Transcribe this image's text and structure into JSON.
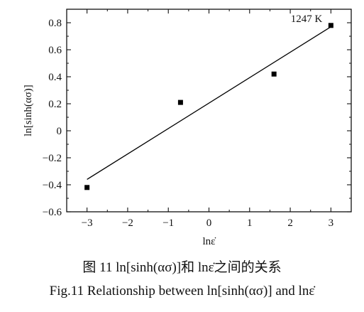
{
  "chart_data": {
    "type": "scatter",
    "title": "",
    "xlabel": "lnε̇",
    "ylabel": "ln[sinh(ασ)]",
    "xlim": [
      -3.5,
      3.5
    ],
    "ylim": [
      -0.6,
      0.9
    ],
    "x_ticks": [
      -3,
      -2,
      -1,
      0,
      1,
      2,
      3
    ],
    "x_tick_labels": [
      "−3",
      "−2",
      "−1",
      "0",
      "1",
      "2",
      "3"
    ],
    "y_ticks": [
      -0.6,
      -0.4,
      -0.2,
      0.0,
      0.2,
      0.4,
      0.6,
      0.8
    ],
    "y_tick_labels": [
      "−0.6",
      "−0.4",
      "−0.2",
      "0",
      "0.2",
      "0.4",
      "0.6",
      "0.8"
    ],
    "grid": false,
    "series": [
      {
        "name": "1247 K",
        "x": [
          -3.0,
          -0.7,
          1.6,
          3.0
        ],
        "y": [
          -0.42,
          0.21,
          0.42,
          0.78
        ],
        "fit_line": {
          "x": [
            -3.0,
            3.0
          ],
          "y": [
            -0.36,
            0.77
          ]
        }
      }
    ],
    "annotations": [
      {
        "text": "1247 K",
        "anchor": "top-right"
      }
    ]
  },
  "captions": {
    "chinese": "图 11 ln[sinh(ασ)]和 lnε̇之间的关系",
    "english": "Fig.11 Relationship between ln[sinh(ασ)] and lnε̇"
  },
  "colors": {
    "axis": "#111111",
    "marker": "#000000",
    "line": "#000000"
  }
}
